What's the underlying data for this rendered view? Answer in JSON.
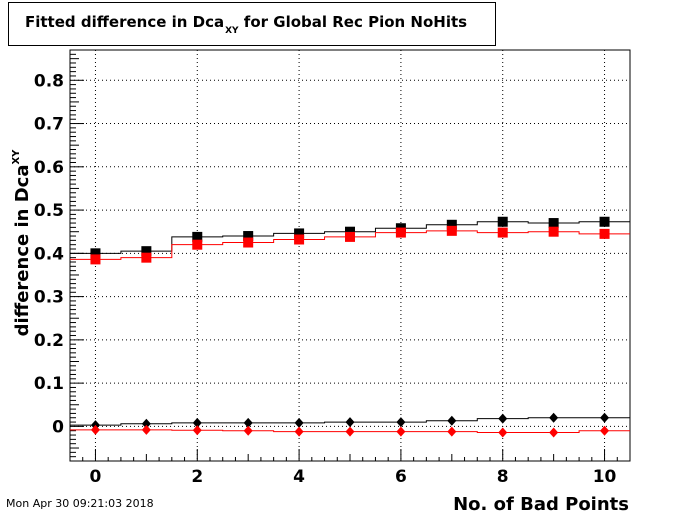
{
  "footer": {
    "date": "Mon Apr 30 09:21:03 2018"
  },
  "chart_data": {
    "type": "scatter",
    "title": "Fitted difference in Dca",
    "title_subscript": "XY",
    "title_suffix": " for Global Rec Pion NoHits",
    "xlabel": "No. of Bad Points",
    "ylabel": "difference in Dca",
    "ylabel_subscript": "XY",
    "xlim": [
      -0.5,
      10.5
    ],
    "ylim": [
      -0.08,
      0.87
    ],
    "x_ticks": [
      0,
      2,
      4,
      6,
      8,
      10
    ],
    "y_ticks": [
      0,
      0.1,
      0.2,
      0.3,
      0.4,
      0.5,
      0.6,
      0.7,
      0.8
    ],
    "y_tick_labels": [
      "0",
      "0.1",
      "0.2",
      "0.3",
      "0.4",
      "0.5",
      "0.6",
      "0.7",
      "0.8"
    ],
    "grid": true,
    "x": [
      0,
      1,
      2,
      3,
      4,
      5,
      6,
      7,
      8,
      9,
      10
    ],
    "series": [
      {
        "color": "#000000",
        "marker": "square",
        "values": [
          0.4,
          0.405,
          0.438,
          0.44,
          0.446,
          0.45,
          0.458,
          0.466,
          0.473,
          0.47,
          0.473
        ]
      },
      {
        "color": "#ff0000",
        "marker": "square",
        "values": [
          0.386,
          0.39,
          0.42,
          0.425,
          0.432,
          0.438,
          0.448,
          0.452,
          0.448,
          0.45,
          0.445
        ]
      },
      {
        "color": "#000000",
        "marker": "diamond",
        "values": [
          0.003,
          0.006,
          0.008,
          0.008,
          0.008,
          0.01,
          0.01,
          0.013,
          0.018,
          0.02,
          0.02
        ]
      },
      {
        "color": "#ff0000",
        "marker": "diamond",
        "values": [
          -0.008,
          -0.008,
          -0.009,
          -0.01,
          -0.012,
          -0.012,
          -0.012,
          -0.012,
          -0.014,
          -0.014,
          -0.01
        ]
      }
    ]
  }
}
